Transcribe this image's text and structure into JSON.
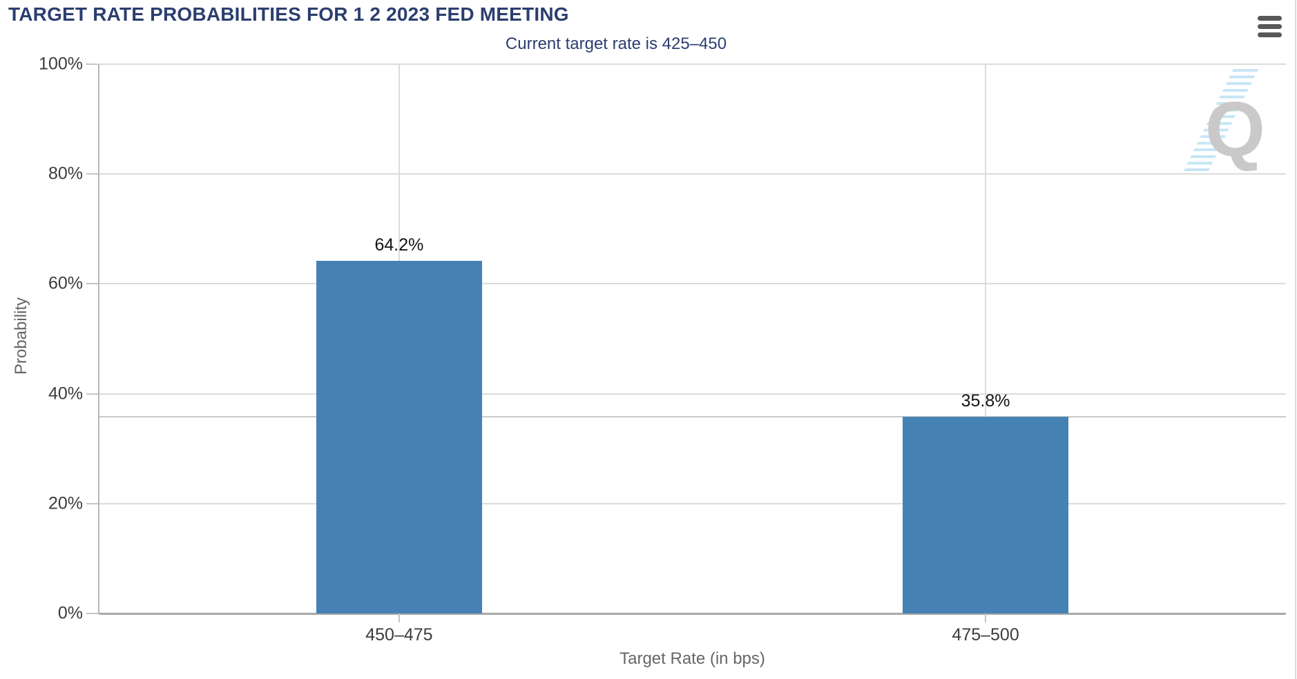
{
  "header": {
    "title": "TARGET RATE PROBABILITIES FOR 1 2 2023 FED MEETING",
    "title_color": "#2b3e6f",
    "menu_icon": "hamburger-icon"
  },
  "chart_data": {
    "type": "bar",
    "title": "TARGET RATE PROBABILITIES FOR 1 2 2023 FED MEETING",
    "subtitle": "Current target rate is 425–450",
    "categories": [
      "450–475",
      "475–500"
    ],
    "values": [
      64.2,
      35.8
    ],
    "value_labels": [
      "64.2%",
      "35.8%"
    ],
    "xlabel": "Target Rate (in bps)",
    "ylabel": "Probability",
    "ylim": [
      0,
      100
    ],
    "ytick_labels": [
      "100%",
      "80%",
      "60%",
      "40%",
      "20%",
      "0%"
    ],
    "ytick_values": [
      100,
      80,
      60,
      40,
      20,
      0
    ],
    "reference_line_value": 35.8,
    "grid": "on",
    "legend": "none",
    "bar_color": "#4681b4",
    "watermark_letter": "Q"
  }
}
